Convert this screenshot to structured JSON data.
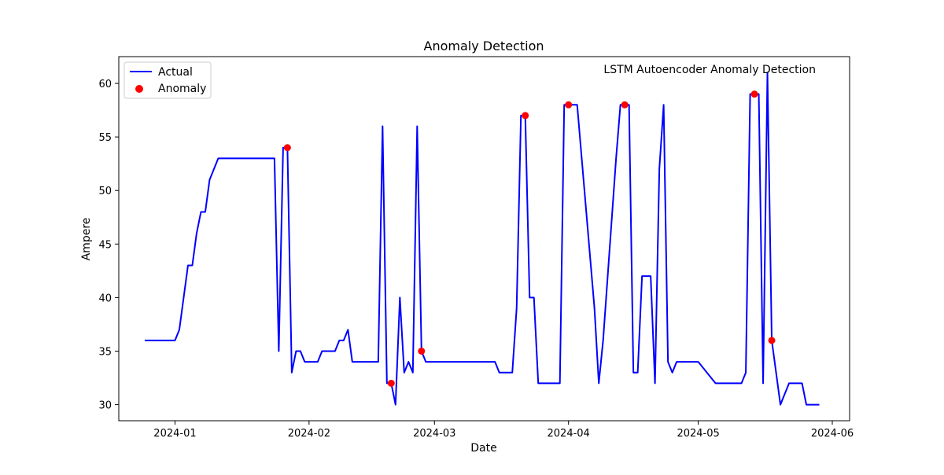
{
  "chart_data": {
    "type": "line",
    "title": "Anomaly Detection",
    "xlabel": "Date",
    "ylabel": "Ampere",
    "annotation": "LSTM Autoencoder Anomaly Detection",
    "xlim": [
      "2023-12-19",
      "2024-06-05"
    ],
    "ylim": [
      28.5,
      62.5
    ],
    "x_ticks": [
      "2024-01",
      "2024-02",
      "2024-03",
      "2024-04",
      "2024-05",
      "2024-06"
    ],
    "y_ticks": [
      30,
      35,
      40,
      45,
      50,
      55,
      60
    ],
    "legend": {
      "position": "upper-left",
      "entries": [
        "Actual",
        "Anomaly"
      ]
    },
    "colors": {
      "actual": "#0000ff",
      "anomaly": "#ff0000"
    },
    "series": [
      {
        "name": "Actual",
        "points": [
          [
            "2023-12-25",
            36
          ],
          [
            "2024-01-01",
            36
          ],
          [
            "2024-01-02",
            37
          ],
          [
            "2024-01-03",
            40
          ],
          [
            "2024-01-04",
            43
          ],
          [
            "2024-01-05",
            43
          ],
          [
            "2024-01-06",
            46
          ],
          [
            "2024-01-07",
            48
          ],
          [
            "2024-01-08",
            48
          ],
          [
            "2024-01-09",
            51
          ],
          [
            "2024-01-10",
            52
          ],
          [
            "2024-01-11",
            53
          ],
          [
            "2024-01-24",
            53
          ],
          [
            "2024-01-25",
            35
          ],
          [
            "2024-01-26",
            54
          ],
          [
            "2024-01-27",
            54
          ],
          [
            "2024-01-28",
            33
          ],
          [
            "2024-01-29",
            35
          ],
          [
            "2024-01-30",
            35
          ],
          [
            "2024-01-31",
            34
          ],
          [
            "2024-02-03",
            34
          ],
          [
            "2024-02-04",
            35
          ],
          [
            "2024-02-07",
            35
          ],
          [
            "2024-02-08",
            36
          ],
          [
            "2024-02-09",
            36
          ],
          [
            "2024-02-10",
            37
          ],
          [
            "2024-02-11",
            34
          ],
          [
            "2024-02-17",
            34
          ],
          [
            "2024-02-18",
            56
          ],
          [
            "2024-02-19",
            32
          ],
          [
            "2024-02-20",
            32
          ],
          [
            "2024-02-21",
            30
          ],
          [
            "2024-02-22",
            40
          ],
          [
            "2024-02-23",
            33
          ],
          [
            "2024-02-24",
            34
          ],
          [
            "2024-02-25",
            33
          ],
          [
            "2024-02-26",
            56
          ],
          [
            "2024-02-27",
            35
          ],
          [
            "2024-02-28",
            34
          ],
          [
            "2024-03-15",
            34
          ],
          [
            "2024-03-16",
            33
          ],
          [
            "2024-03-19",
            33
          ],
          [
            "2024-03-20",
            39
          ],
          [
            "2024-03-21",
            57
          ],
          [
            "2024-03-22",
            57
          ],
          [
            "2024-03-23",
            40
          ],
          [
            "2024-03-24",
            40
          ],
          [
            "2024-03-25",
            32
          ],
          [
            "2024-03-30",
            32
          ],
          [
            "2024-03-31",
            58
          ],
          [
            "2024-04-01",
            58
          ],
          [
            "2024-04-03",
            58
          ],
          [
            "2024-04-07",
            39
          ],
          [
            "2024-04-08",
            32
          ],
          [
            "2024-04-09",
            36
          ],
          [
            "2024-04-12",
            53
          ],
          [
            "2024-04-13",
            58
          ],
          [
            "2024-04-14",
            58
          ],
          [
            "2024-04-15",
            58
          ],
          [
            "2024-04-16",
            33
          ],
          [
            "2024-04-17",
            33
          ],
          [
            "2024-04-18",
            42
          ],
          [
            "2024-04-20",
            42
          ],
          [
            "2024-04-21",
            32
          ],
          [
            "2024-04-22",
            52
          ],
          [
            "2024-04-23",
            58
          ],
          [
            "2024-04-24",
            34
          ],
          [
            "2024-04-25",
            33
          ],
          [
            "2024-04-26",
            34
          ],
          [
            "2024-05-01",
            34
          ],
          [
            "2024-05-05",
            32
          ],
          [
            "2024-05-11",
            32
          ],
          [
            "2024-05-12",
            33
          ],
          [
            "2024-05-13",
            59
          ],
          [
            "2024-05-15",
            59
          ],
          [
            "2024-05-16",
            32
          ],
          [
            "2024-05-17",
            61
          ],
          [
            "2024-05-18",
            36
          ],
          [
            "2024-05-20",
            30
          ],
          [
            "2024-05-22",
            32
          ],
          [
            "2024-05-25",
            32
          ],
          [
            "2024-05-26",
            30
          ],
          [
            "2024-05-29",
            30
          ]
        ]
      },
      {
        "name": "Anomaly",
        "points": [
          [
            "2024-01-27",
            54
          ],
          [
            "2024-02-20",
            32
          ],
          [
            "2024-02-27",
            35
          ],
          [
            "2024-03-22",
            57
          ],
          [
            "2024-04-01",
            58
          ],
          [
            "2024-04-14",
            58
          ],
          [
            "2024-05-14",
            59
          ],
          [
            "2024-05-18",
            36
          ]
        ]
      }
    ]
  }
}
